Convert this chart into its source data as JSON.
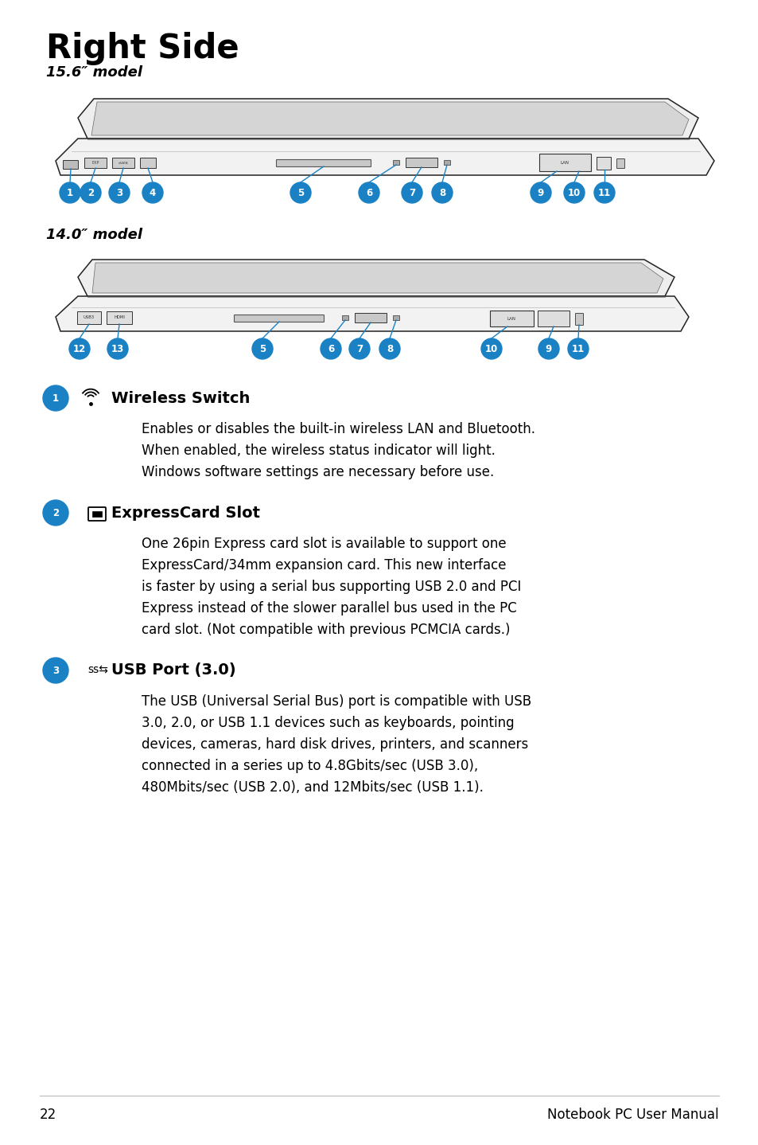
{
  "title": "Right Side",
  "model1": "15.6″ model",
  "model2": "14.0″ model",
  "bg_color": "#ffffff",
  "text_color": "#000000",
  "accent_color": "#1a82c4",
  "page_number": "22",
  "footer_text": "Notebook PC User Manual",
  "sections": [
    {
      "num": "1",
      "icon": "wireless",
      "title": "Wireless Switch",
      "body": "Enables or disables the built-in wireless LAN and Bluetooth.\nWhen enabled, the wireless status indicator will light.\nWindows software settings are necessary before use."
    },
    {
      "num": "2",
      "icon": "expresscard",
      "title": "ExpressCard Slot",
      "body": "One 26pin Express card slot is available to support one\nExpressCard/34mm expansion card. This new interface\nis faster by using a serial bus supporting USB 2.0 and PCI\nExpress instead of the slower parallel bus used in the PC\ncard slot. (Not compatible with previous PCMCIA cards.)"
    },
    {
      "num": "3",
      "icon": "usb",
      "title": "USB Port (3.0)",
      "body": "The USB (Universal Serial Bus) port is compatible with USB\n3.0, 2.0, or USB 1.1 devices such as keyboards, pointing\ndevices, cameras, hard disk drives, printers, and scanners\nconnected in a series up to 4.8Gbits/sec (USB 3.0),\n480Mbits/sec (USB 2.0), and 12Mbits/sec (USB 1.1)."
    }
  ]
}
